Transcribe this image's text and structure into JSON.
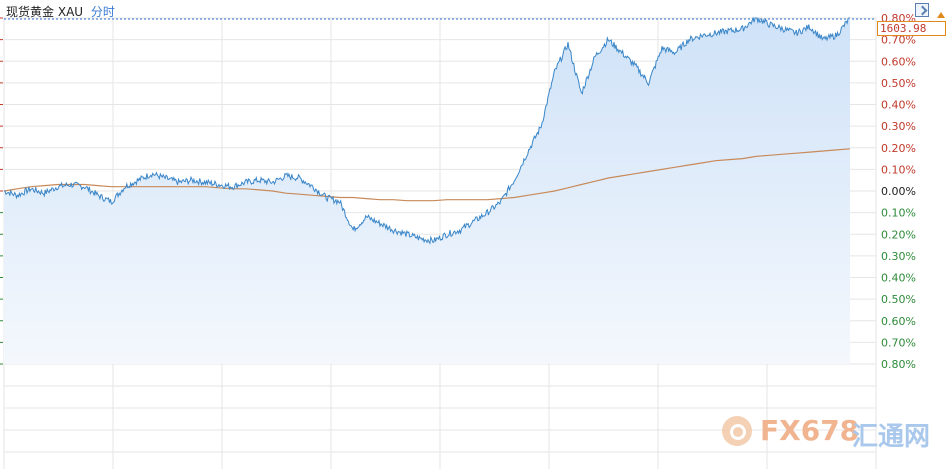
{
  "header": {
    "name": "现货黄金",
    "code": "XAU",
    "mode": "分时"
  },
  "price_label": "1603.98",
  "watermark": {
    "latin": "FX678",
    "chinese": "汇通网"
  },
  "colors": {
    "price_line": "#3a86c8",
    "avg_line": "#c88a5a",
    "area_fill_top": "#cfe2f8",
    "area_fill_bottom": "#f4f8fd",
    "positive_tick": "#c0392b",
    "negative_tick": "#2e8b3a",
    "grid": "#e6e6e6",
    "reference_line": "#2f6fd0"
  },
  "chart_data": {
    "type": "line",
    "title": "现货黄金 XAU 分时",
    "y_unit": "percent change",
    "ylim": [
      -0.8,
      0.8
    ],
    "y_ticks": [
      {
        "label": "0.80%",
        "value": 0.8
      },
      {
        "label": "0.70%",
        "value": 0.7
      },
      {
        "label": "0.60%",
        "value": 0.6
      },
      {
        "label": "0.50%",
        "value": 0.5
      },
      {
        "label": "0.40%",
        "value": 0.4
      },
      {
        "label": "0.30%",
        "value": 0.3
      },
      {
        "label": "0.20%",
        "value": 0.2
      },
      {
        "label": "0.10%",
        "value": 0.1
      },
      {
        "label": "0.00%",
        "value": 0.0
      },
      {
        "label": "0.10%",
        "value": -0.1
      },
      {
        "label": "0.20%",
        "value": -0.2
      },
      {
        "label": "0.30%",
        "value": -0.3
      },
      {
        "label": "0.40%",
        "value": -0.4
      },
      {
        "label": "0.50%",
        "value": -0.5
      },
      {
        "label": "0.60%",
        "value": -0.6
      },
      {
        "label": "0.70%",
        "value": -0.7
      },
      {
        "label": "0.80%",
        "value": -0.8
      }
    ],
    "grid": true,
    "series": [
      {
        "values": [
          0.0,
          -0.02,
          0.01,
          -0.01,
          0.02,
          0.03,
          0.02,
          -0.02,
          -0.05,
          0.02,
          0.05,
          0.08,
          0.06,
          0.04,
          0.05,
          0.04,
          0.03,
          0.02,
          0.04,
          0.05,
          0.04,
          0.07,
          0.06,
          0.02,
          -0.03,
          -0.05,
          -0.18,
          -0.12,
          -0.15,
          -0.18,
          -0.2,
          -0.22,
          -0.23,
          -0.2,
          -0.18,
          -0.14,
          -0.1,
          -0.05,
          0.05,
          0.18,
          0.3,
          0.55,
          0.68,
          0.45,
          0.62,
          0.7,
          0.64,
          0.58,
          0.5,
          0.66,
          0.64,
          0.7,
          0.72,
          0.73,
          0.74,
          0.75,
          0.8,
          0.77,
          0.75,
          0.73,
          0.76,
          0.7,
          0.72,
          0.8
        ]
      },
      {
        "values": [
          0.0,
          0.01,
          0.02,
          0.025,
          0.03,
          0.03,
          0.03,
          0.025,
          0.02,
          0.02,
          0.02,
          0.02,
          0.02,
          0.02,
          0.02,
          0.02,
          0.015,
          0.01,
          0.01,
          0.005,
          0.0,
          -0.01,
          -0.015,
          -0.02,
          -0.025,
          -0.03,
          -0.03,
          -0.035,
          -0.04,
          -0.04,
          -0.045,
          -0.045,
          -0.045,
          -0.04,
          -0.04,
          -0.04,
          -0.04,
          -0.035,
          -0.03,
          -0.02,
          -0.01,
          0.0,
          0.015,
          0.03,
          0.045,
          0.06,
          0.07,
          0.08,
          0.09,
          0.1,
          0.11,
          0.12,
          0.13,
          0.14,
          0.145,
          0.15,
          0.16,
          0.165,
          0.17,
          0.175,
          0.18,
          0.185,
          0.19,
          0.195
        ]
      }
    ]
  }
}
